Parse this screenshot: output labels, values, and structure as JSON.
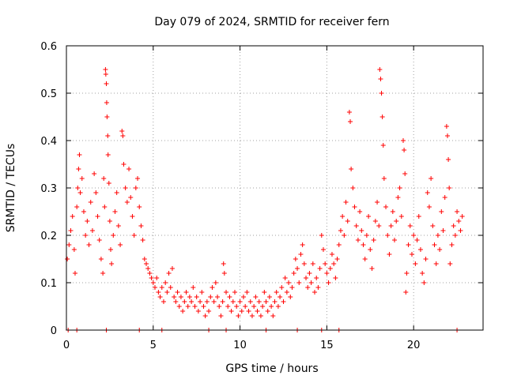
{
  "chart_data": {
    "type": "scatter",
    "title": "Day 079 of 2024, SRMTID for receiver fern",
    "xlabel": "GPS time / hours",
    "ylabel": "SRMTID / TECUs",
    "xlim": [
      0,
      24
    ],
    "ylim": [
      0,
      0.6
    ],
    "x_ticks": [
      0,
      5,
      10,
      15,
      20
    ],
    "x_tick_labels": [
      "0",
      "5",
      "10",
      "15",
      "20"
    ],
    "y_ticks": [
      0,
      0.1,
      0.2,
      0.3,
      0.4,
      0.5,
      0.6
    ],
    "y_tick_labels": [
      "0",
      "0.1",
      "0.2",
      "0.3",
      "0.4",
      "0.5",
      "0.6"
    ],
    "grid": true,
    "marker": "+",
    "color": "#ff0000",
    "series": [
      {
        "name": "SRMTID",
        "points": [
          [
            0.05,
            0.15
          ],
          [
            0.15,
            0.18
          ],
          [
            0.25,
            0.21
          ],
          [
            0.35,
            0.24
          ],
          [
            0.45,
            0.17
          ],
          [
            0.5,
            0.12
          ],
          [
            0.6,
            0.26
          ],
          [
            0.65,
            0.3
          ],
          [
            0.7,
            0.34
          ],
          [
            0.75,
            0.37
          ],
          [
            0.8,
            0.29
          ],
          [
            0.9,
            0.32
          ],
          [
            1.0,
            0.25
          ],
          [
            1.1,
            0.2
          ],
          [
            1.2,
            0.23
          ],
          [
            1.3,
            0.18
          ],
          [
            1.4,
            0.27
          ],
          [
            1.5,
            0.21
          ],
          [
            1.6,
            0.33
          ],
          [
            1.7,
            0.29
          ],
          [
            1.8,
            0.24
          ],
          [
            1.9,
            0.19
          ],
          [
            2.0,
            0.15
          ],
          [
            2.1,
            0.12
          ],
          [
            2.15,
            0.32
          ],
          [
            2.2,
            0.26
          ],
          [
            2.25,
            0.55
          ],
          [
            2.27,
            0.54
          ],
          [
            2.3,
            0.52
          ],
          [
            2.32,
            0.48
          ],
          [
            2.34,
            0.45
          ],
          [
            2.38,
            0.41
          ],
          [
            2.4,
            0.37
          ],
          [
            2.45,
            0.31
          ],
          [
            2.5,
            0.23
          ],
          [
            2.55,
            0.17
          ],
          [
            2.6,
            0.14
          ],
          [
            2.7,
            0.2
          ],
          [
            2.8,
            0.25
          ],
          [
            2.9,
            0.29
          ],
          [
            3.0,
            0.22
          ],
          [
            3.1,
            0.18
          ],
          [
            3.2,
            0.42
          ],
          [
            3.25,
            0.41
          ],
          [
            3.3,
            0.35
          ],
          [
            3.4,
            0.3
          ],
          [
            3.5,
            0.27
          ],
          [
            3.6,
            0.34
          ],
          [
            3.7,
            0.28
          ],
          [
            3.8,
            0.24
          ],
          [
            3.9,
            0.2
          ],
          [
            4.0,
            0.3
          ],
          [
            4.1,
            0.32
          ],
          [
            4.2,
            0.26
          ],
          [
            4.3,
            0.22
          ],
          [
            4.4,
            0.19
          ],
          [
            4.5,
            0.15
          ],
          [
            4.6,
            0.14
          ],
          [
            4.7,
            0.13
          ],
          [
            4.8,
            0.12
          ],
          [
            4.9,
            0.11
          ],
          [
            5.0,
            0.1
          ],
          [
            5.1,
            0.09
          ],
          [
            5.2,
            0.11
          ],
          [
            5.3,
            0.08
          ],
          [
            5.4,
            0.07
          ],
          [
            5.5,
            0.09
          ],
          [
            5.6,
            0.06
          ],
          [
            5.7,
            0.1
          ],
          [
            5.8,
            0.08
          ],
          [
            5.9,
            0.12
          ],
          [
            6.0,
            0.09
          ],
          [
            6.1,
            0.13
          ],
          [
            6.2,
            0.07
          ],
          [
            6.3,
            0.06
          ],
          [
            6.4,
            0.08
          ],
          [
            6.5,
            0.05
          ],
          [
            6.6,
            0.07
          ],
          [
            6.7,
            0.04
          ],
          [
            6.8,
            0.06
          ],
          [
            6.9,
            0.08
          ],
          [
            7.0,
            0.05
          ],
          [
            7.1,
            0.07
          ],
          [
            7.2,
            0.06
          ],
          [
            7.3,
            0.09
          ],
          [
            7.4,
            0.05
          ],
          [
            7.5,
            0.07
          ],
          [
            7.6,
            0.04
          ],
          [
            7.7,
            0.06
          ],
          [
            7.8,
            0.08
          ],
          [
            7.9,
            0.05
          ],
          [
            8.0,
            0.03
          ],
          [
            8.1,
            0.06
          ],
          [
            8.2,
            0.04
          ],
          [
            8.3,
            0.07
          ],
          [
            8.4,
            0.09
          ],
          [
            8.5,
            0.06
          ],
          [
            8.6,
            0.1
          ],
          [
            8.7,
            0.07
          ],
          [
            8.8,
            0.05
          ],
          [
            8.9,
            0.03
          ],
          [
            9.0,
            0.06
          ],
          [
            9.05,
            0.14
          ],
          [
            9.1,
            0.12
          ],
          [
            9.2,
            0.08
          ],
          [
            9.3,
            0.05
          ],
          [
            9.4,
            0.07
          ],
          [
            9.5,
            0.04
          ],
          [
            9.6,
            0.06
          ],
          [
            9.7,
            0.08
          ],
          [
            9.8,
            0.05
          ],
          [
            9.9,
            0.03
          ],
          [
            10.0,
            0.06
          ],
          [
            10.1,
            0.04
          ],
          [
            10.2,
            0.07
          ],
          [
            10.3,
            0.05
          ],
          [
            10.4,
            0.08
          ],
          [
            10.5,
            0.04
          ],
          [
            10.6,
            0.06
          ],
          [
            10.7,
            0.03
          ],
          [
            10.8,
            0.05
          ],
          [
            10.9,
            0.07
          ],
          [
            11.0,
            0.04
          ],
          [
            11.1,
            0.06
          ],
          [
            11.2,
            0.03
          ],
          [
            11.3,
            0.05
          ],
          [
            11.4,
            0.08
          ],
          [
            11.5,
            0.06
          ],
          [
            11.6,
            0.04
          ],
          [
            11.7,
            0.07
          ],
          [
            11.8,
            0.05
          ],
          [
            11.9,
            0.03
          ],
          [
            12.0,
            0.06
          ],
          [
            12.1,
            0.08
          ],
          [
            12.2,
            0.05
          ],
          [
            12.3,
            0.07
          ],
          [
            12.4,
            0.09
          ],
          [
            12.5,
            0.06
          ],
          [
            12.6,
            0.11
          ],
          [
            12.7,
            0.08
          ],
          [
            12.8,
            0.1
          ],
          [
            12.9,
            0.07
          ],
          [
            13.0,
            0.09
          ],
          [
            13.1,
            0.12
          ],
          [
            13.2,
            0.15
          ],
          [
            13.3,
            0.13
          ],
          [
            13.4,
            0.1
          ],
          [
            13.5,
            0.16
          ],
          [
            13.6,
            0.18
          ],
          [
            13.7,
            0.14
          ],
          [
            13.8,
            0.11
          ],
          [
            13.9,
            0.09
          ],
          [
            14.0,
            0.12
          ],
          [
            14.1,
            0.1
          ],
          [
            14.2,
            0.14
          ],
          [
            14.3,
            0.08
          ],
          [
            14.4,
            0.11
          ],
          [
            14.5,
            0.09
          ],
          [
            14.6,
            0.13
          ],
          [
            14.7,
            0.2
          ],
          [
            14.8,
            0.17
          ],
          [
            14.9,
            0.14
          ],
          [
            15.0,
            0.12
          ],
          [
            15.1,
            0.1
          ],
          [
            15.2,
            0.13
          ],
          [
            15.3,
            0.16
          ],
          [
            15.4,
            0.14
          ],
          [
            15.5,
            0.11
          ],
          [
            15.6,
            0.15
          ],
          [
            15.7,
            0.18
          ],
          [
            15.8,
            0.21
          ],
          [
            15.9,
            0.24
          ],
          [
            16.0,
            0.2
          ],
          [
            16.1,
            0.27
          ],
          [
            16.2,
            0.23
          ],
          [
            16.3,
            0.46
          ],
          [
            16.35,
            0.44
          ],
          [
            16.4,
            0.34
          ],
          [
            16.5,
            0.3
          ],
          [
            16.6,
            0.26
          ],
          [
            16.7,
            0.22
          ],
          [
            16.8,
            0.19
          ],
          [
            16.9,
            0.25
          ],
          [
            17.0,
            0.21
          ],
          [
            17.1,
            0.18
          ],
          [
            17.2,
            0.15
          ],
          [
            17.3,
            0.2
          ],
          [
            17.4,
            0.24
          ],
          [
            17.5,
            0.17
          ],
          [
            17.6,
            0.13
          ],
          [
            17.7,
            0.19
          ],
          [
            17.8,
            0.23
          ],
          [
            17.9,
            0.27
          ],
          [
            18.0,
            0.22
          ],
          [
            18.05,
            0.55
          ],
          [
            18.1,
            0.53
          ],
          [
            18.15,
            0.5
          ],
          [
            18.2,
            0.45
          ],
          [
            18.25,
            0.39
          ],
          [
            18.3,
            0.32
          ],
          [
            18.4,
            0.26
          ],
          [
            18.5,
            0.2
          ],
          [
            18.6,
            0.16
          ],
          [
            18.7,
            0.22
          ],
          [
            18.8,
            0.25
          ],
          [
            18.9,
            0.19
          ],
          [
            19.0,
            0.23
          ],
          [
            19.1,
            0.28
          ],
          [
            19.2,
            0.3
          ],
          [
            19.3,
            0.24
          ],
          [
            19.4,
            0.4
          ],
          [
            19.45,
            0.38
          ],
          [
            19.5,
            0.33
          ],
          [
            19.55,
            0.08
          ],
          [
            19.6,
            0.12
          ],
          [
            19.7,
            0.18
          ],
          [
            19.8,
            0.22
          ],
          [
            19.9,
            0.16
          ],
          [
            20.0,
            0.2
          ],
          [
            20.1,
            0.14
          ],
          [
            20.2,
            0.19
          ],
          [
            20.3,
            0.24
          ],
          [
            20.4,
            0.17
          ],
          [
            20.5,
            0.12
          ],
          [
            20.6,
            0.1
          ],
          [
            20.7,
            0.15
          ],
          [
            20.8,
            0.29
          ],
          [
            20.9,
            0.26
          ],
          [
            21.0,
            0.32
          ],
          [
            21.1,
            0.22
          ],
          [
            21.2,
            0.18
          ],
          [
            21.3,
            0.14
          ],
          [
            21.4,
            0.2
          ],
          [
            21.5,
            0.17
          ],
          [
            21.6,
            0.25
          ],
          [
            21.7,
            0.21
          ],
          [
            21.8,
            0.28
          ],
          [
            21.9,
            0.43
          ],
          [
            21.95,
            0.41
          ],
          [
            22.0,
            0.36
          ],
          [
            22.05,
            0.3
          ],
          [
            22.1,
            0.14
          ],
          [
            22.2,
            0.18
          ],
          [
            22.3,
            0.22
          ],
          [
            22.4,
            0.2
          ],
          [
            22.5,
            0.25
          ],
          [
            22.6,
            0.23
          ],
          [
            22.7,
            0.21
          ],
          [
            22.8,
            0.24
          ]
        ]
      },
      {
        "name": "zero-markers",
        "points": [
          [
            0.1,
            0
          ],
          [
            0.6,
            0
          ],
          [
            2.3,
            0
          ],
          [
            4.2,
            0
          ],
          [
            5.5,
            0
          ],
          [
            8.2,
            0
          ],
          [
            9.2,
            0
          ],
          [
            11.5,
            0
          ],
          [
            13.3,
            0
          ],
          [
            14.7,
            0
          ],
          [
            15.7,
            0
          ],
          [
            22.5,
            0
          ]
        ]
      }
    ]
  }
}
